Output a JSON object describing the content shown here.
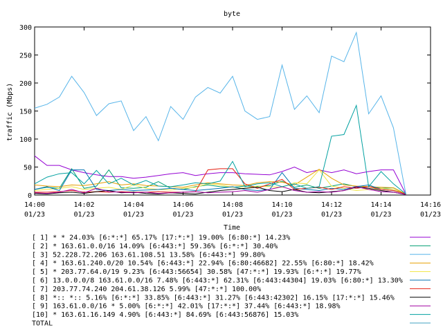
{
  "chart_data": {
    "type": "line",
    "title": "byte",
    "xlabel": "Time",
    "ylabel": "traffic (Mbps)",
    "ylim": [
      0,
      300
    ],
    "yticks": [
      "0",
      "50",
      "100",
      "150",
      "200",
      "250",
      "300"
    ],
    "xlim": [
      "14:00",
      "14:16"
    ],
    "xticks": [
      {
        "time": "14:00",
        "date": "01/23"
      },
      {
        "time": "14:02",
        "date": "01/23"
      },
      {
        "time": "14:04",
        "date": "01/23"
      },
      {
        "time": "14:06",
        "date": "01/23"
      },
      {
        "time": "14:08",
        "date": "01/23"
      },
      {
        "time": "14:10",
        "date": "01/23"
      },
      {
        "time": "14:12",
        "date": "01/23"
      },
      {
        "time": "14:14",
        "date": "01/23"
      },
      {
        "time": "14:16",
        "date": "01/23"
      }
    ],
    "legend_position": "bottom",
    "x": [
      "14:00:00",
      "14:00:30",
      "14:01:00",
      "14:01:30",
      "14:02:00",
      "14:02:30",
      "14:03:00",
      "14:03:30",
      "14:04:00",
      "14:04:30",
      "14:05:00",
      "14:05:30",
      "14:06:00",
      "14:06:30",
      "14:07:00",
      "14:07:30",
      "14:08:00",
      "14:08:30",
      "14:09:00",
      "14:09:30",
      "14:10:00",
      "14:10:30",
      "14:11:00",
      "14:11:30",
      "14:12:00",
      "14:12:30",
      "14:13:00",
      "14:13:30",
      "14:14:00",
      "14:14:30",
      "14:15:00"
    ],
    "series": [
      {
        "name": "[ 1] * * 24.03%  [6:*:*] 65.17% [17:*:*] 19.00% [6:80:*] 14.23%",
        "color": "#9400d3",
        "values": [
          70,
          53,
          53,
          45,
          40,
          36,
          33,
          33,
          30,
          32,
          35,
          38,
          40,
          35,
          38,
          40,
          40,
          38,
          37,
          36,
          42,
          50,
          40,
          45,
          40,
          45,
          38,
          42,
          45,
          45,
          2
        ]
      },
      {
        "name": "[ 2] * 163.61.0.0/16 14.09%  [6:443:*] 59.36% [6:*:*] 30.40%",
        "color": "#009e73",
        "values": [
          10,
          14,
          12,
          47,
          12,
          16,
          45,
          13,
          12,
          14,
          24,
          12,
          10,
          15,
          18,
          15,
          14,
          16,
          15,
          17,
          25,
          14,
          18,
          12,
          16,
          20,
          15,
          15,
          12,
          13,
          2
        ]
      },
      {
        "name": "[ 3] 52.228.72.206 163.61.108.51 13.58%  [6:443:*] 99.80%",
        "color": "#56b4e9",
        "values": [
          155,
          162,
          175,
          212,
          183,
          142,
          163,
          168,
          115,
          140,
          97,
          158,
          135,
          175,
          192,
          182,
          212,
          150,
          135,
          140,
          232,
          153,
          177,
          147,
          248,
          238,
          290,
          145,
          177,
          120,
          2
        ]
      },
      {
        "name": "[ 4] * 163.61.240.0/20 10.54%  [6:443:*] 22.94% [6:80:46682] 22.55% [6:80:*] 18.42%",
        "color": "#e69f00",
        "values": [
          18,
          16,
          15,
          18,
          17,
          20,
          24,
          18,
          20,
          17,
          16,
          15,
          14,
          18,
          22,
          20,
          18,
          17,
          22,
          24,
          23,
          18,
          32,
          46,
          30,
          18,
          16,
          15,
          14,
          13,
          2
        ]
      },
      {
        "name": "[ 5] * 203.77.64.0/19 9.23%  [6:443:56654] 30.58% [47:*:*] 19.93% [6:*:*] 19.77%",
        "color": "#f0e442",
        "values": [
          8,
          10,
          12,
          15,
          10,
          12,
          14,
          10,
          18,
          12,
          10,
          9,
          12,
          14,
          20,
          18,
          14,
          12,
          16,
          15,
          14,
          22,
          20,
          45,
          16,
          12,
          8,
          10,
          12,
          10,
          2
        ]
      },
      {
        "name": "[ 6] 13.0.0.0/8 163.61.0.0/16 7.48%  [6:443:*] 62.31% [6:443:44304] 19.03% [6:80:*] 13.30%",
        "color": "#0072b2",
        "values": [
          10,
          15,
          8,
          45,
          45,
          10,
          8,
          10,
          8,
          9,
          10,
          12,
          10,
          8,
          10,
          12,
          15,
          10,
          8,
          10,
          40,
          12,
          10,
          8,
          12,
          10,
          15,
          18,
          10,
          8,
          2
        ]
      },
      {
        "name": "[ 7] 203.77.74.240 204.61.38.126 5.99%  [47:*:*] 100.00%",
        "color": "#e51e10",
        "values": [
          5,
          5,
          6,
          8,
          5,
          6,
          5,
          6,
          5,
          5,
          6,
          5,
          5,
          6,
          45,
          47,
          47,
          20,
          12,
          20,
          28,
          10,
          12,
          14,
          10,
          15,
          12,
          15,
          10,
          8,
          2
        ]
      },
      {
        "name": "[ 8] *:: *:: 5.16%  [6:*:*] 33.85% [6:443:*] 31.27% [6:443:42302] 16.15% [17:*:*] 15.46%",
        "color": "#000000",
        "values": [
          3,
          2,
          4,
          5,
          3,
          6,
          8,
          4,
          5,
          3,
          2,
          4,
          3,
          2,
          5,
          8,
          10,
          12,
          14,
          8,
          6,
          10,
          5,
          4,
          6,
          8,
          14,
          12,
          8,
          5,
          1
        ]
      },
      {
        "name": "[ 9] 163.61.0.0/16 * 5.00%  [6:*:*] 42.01% [17:*:*] 37.44% [6:443:*] 18.98%",
        "color": "#a000a0",
        "values": [
          4,
          3,
          5,
          10,
          4,
          12,
          6,
          5,
          4,
          5,
          3,
          4,
          5,
          6,
          4,
          5,
          6,
          8,
          5,
          10,
          15,
          8,
          5,
          6,
          5,
          8,
          15,
          10,
          6,
          5,
          1
        ]
      },
      {
        "name": "[10] * 163.61.16.149 4.90%  [6:443:*] 84.69% [6:443:56876] 15.03%",
        "color": "#00a0a0",
        "values": [
          20,
          32,
          38,
          40,
          20,
          44,
          20,
          30,
          18,
          26,
          16,
          15,
          18,
          22,
          20,
          25,
          60,
          15,
          20,
          22,
          15,
          20,
          12,
          15,
          105,
          108,
          160,
          15,
          42,
          20,
          2
        ]
      },
      {
        "name": "TOTAL",
        "color": "#40a0c0",
        "values": null
      }
    ]
  }
}
